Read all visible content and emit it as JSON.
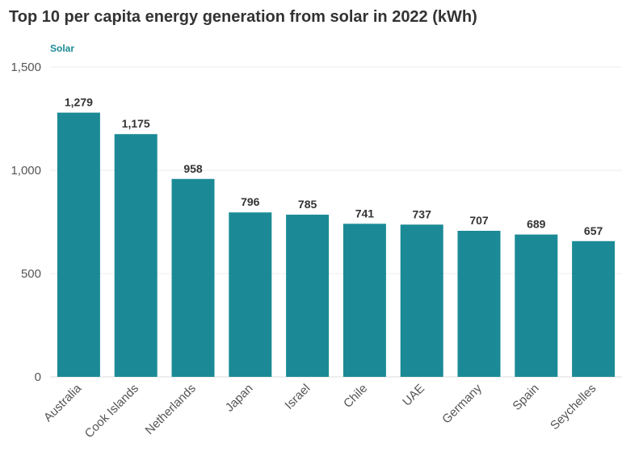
{
  "chart_data": {
    "type": "bar",
    "title": "Top 10 per capita energy generation from solar in 2022 (kWh)",
    "categories": [
      "Australia",
      "Cook Islands",
      "Netherlands",
      "Japan",
      "Israel",
      "Chile",
      "UAE",
      "Germany",
      "Spain",
      "Seychelles"
    ],
    "series": [
      {
        "name": "Solar",
        "values": [
          1279,
          1175,
          958,
          796,
          785,
          741,
          737,
          707,
          689,
          657
        ],
        "color": "#1b8a96"
      }
    ],
    "value_labels": [
      "1,279",
      "1,175",
      "958",
      "796",
      "785",
      "741",
      "737",
      "707",
      "689",
      "657"
    ],
    "y_ticks": [
      0,
      500,
      1000,
      1500
    ],
    "y_tick_labels": [
      "0",
      "500",
      "1,000",
      "1,500"
    ],
    "ylim": [
      0,
      1500
    ],
    "xlabel": "",
    "ylabel": "",
    "grid": true,
    "legend_position": "top-left"
  }
}
